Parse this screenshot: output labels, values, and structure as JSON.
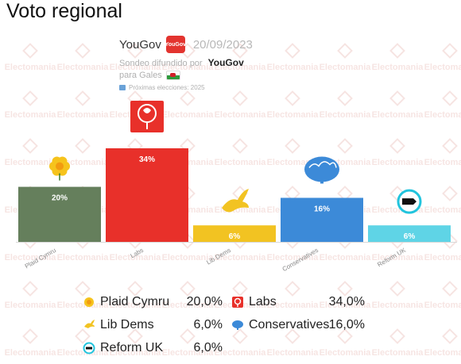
{
  "page": {
    "title": "Voto regional"
  },
  "poll": {
    "pollster": "YouGov",
    "pollster_logo_text": "YouGov",
    "date": "20/09/2023",
    "published_by_label": "Sondeo difundido por",
    "published_by": "YouGov",
    "region": "para Gales",
    "next_election": "Próximas elecciones: 2025"
  },
  "watermark": {
    "text": "Electomania"
  },
  "chart_data": {
    "type": "bar",
    "categories": [
      "Plaid Cymru",
      "Labs",
      "Lib Dems",
      "Conservatives",
      "Reform UK"
    ],
    "values": [
      20,
      34,
      6,
      16,
      6
    ],
    "value_labels": [
      "20%",
      "34%",
      "6%",
      "16%",
      "6%"
    ],
    "colors": [
      "#657f5c",
      "#e8302a",
      "#f2c322",
      "#3c8ad8",
      "#5fd4e6"
    ],
    "icons": [
      "daffodil-icon",
      "rose-icon",
      "dove-icon",
      "oak-tree-icon",
      "reform-uk-icon"
    ],
    "ylim": [
      0,
      34
    ],
    "grid": false,
    "legend": "bottom"
  },
  "legend": {
    "items": [
      {
        "label": "Plaid Cymru",
        "value": "20,0%",
        "icon": "daffodil-icon"
      },
      {
        "label": "Labs",
        "value": "34,0%",
        "icon": "rose-icon"
      },
      {
        "label": "Lib Dems",
        "value": "6,0%",
        "icon": "dove-icon"
      },
      {
        "label": "Conservatives",
        "value": "16,0%",
        "icon": "oak-tree-icon"
      },
      {
        "label": "Reform UK",
        "value": "6,0%",
        "icon": "reform-uk-icon"
      }
    ]
  }
}
